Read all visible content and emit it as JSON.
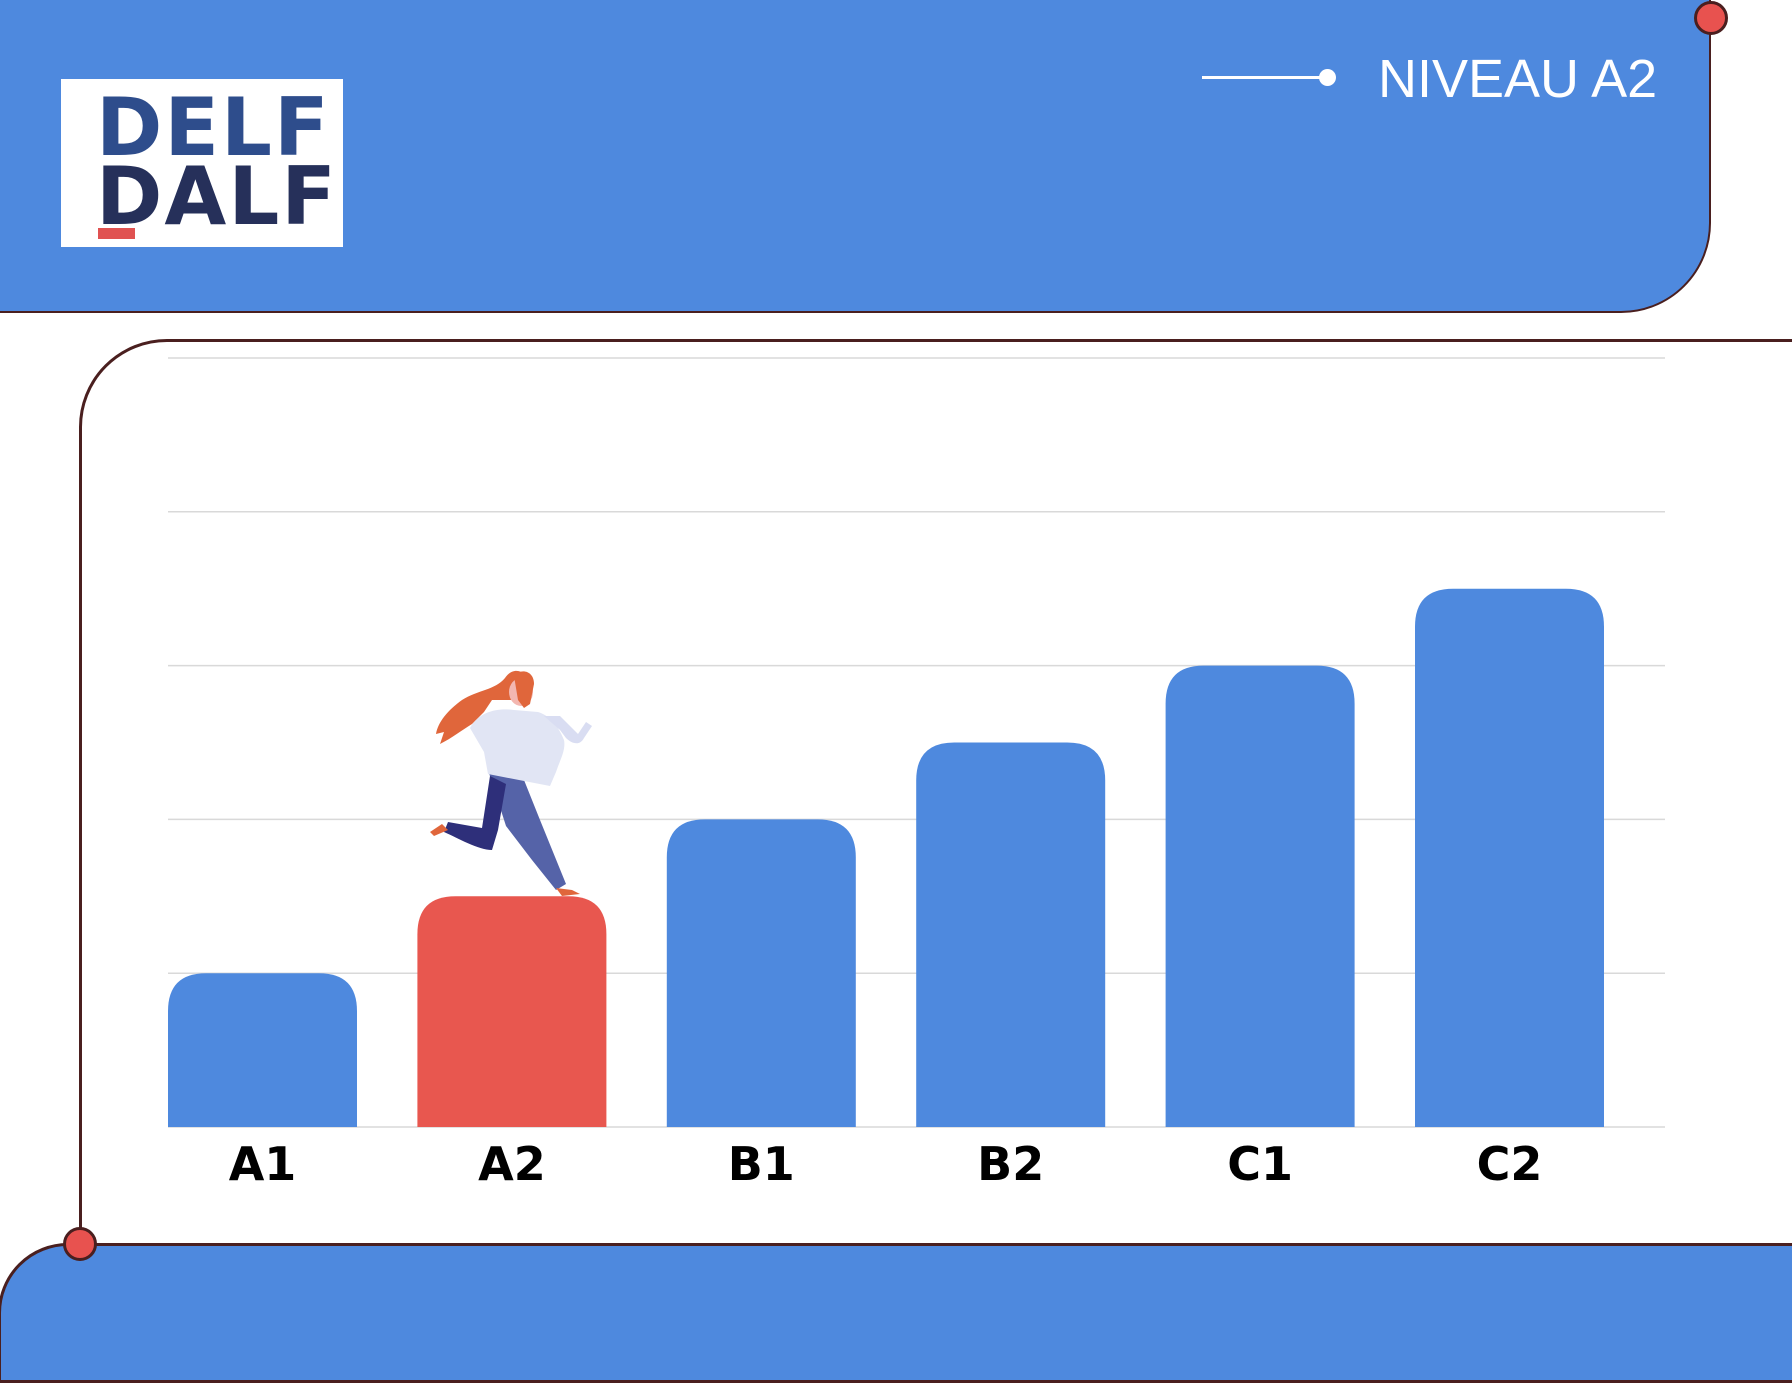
{
  "header": {
    "logo": {
      "line1": "DELF",
      "line2": "DALF"
    },
    "level_label": "NIVEAU A2"
  },
  "colors": {
    "primary": "#4e89de",
    "highlight": "#e8574f",
    "outline": "#4a1f1f",
    "gridline": "#d9d9d9",
    "tick_text": "#000000"
  },
  "chart_data": {
    "type": "bar",
    "title": "",
    "xlabel": "",
    "ylabel": "",
    "categories": [
      "A1",
      "A2",
      "B1",
      "B2",
      "C1",
      "C2"
    ],
    "values": [
      1,
      1.5,
      2,
      2.5,
      3,
      3.5
    ],
    "ylim": [
      0,
      5
    ],
    "grid": true,
    "highlighted_category": "A2",
    "y_tick_labels_shown": false
  }
}
